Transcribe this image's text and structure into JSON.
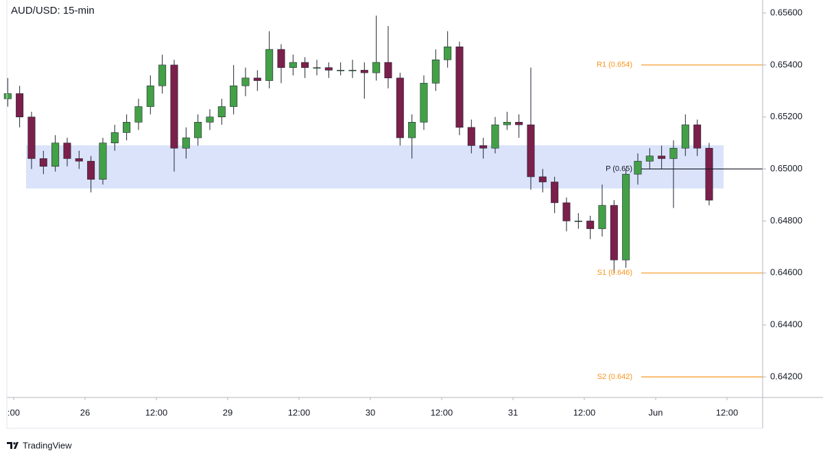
{
  "chart_data": {
    "type": "candlestick",
    "title": "AUD/USD: 15-min",
    "watermark": "TradingView",
    "x": [
      -1,
      1,
      3,
      5,
      7,
      9,
      11,
      13,
      15,
      17,
      19,
      21,
      23,
      25,
      27,
      29,
      31,
      33,
      35,
      37,
      39,
      41,
      43,
      45,
      47,
      49,
      51,
      53,
      55,
      57,
      59,
      61,
      63,
      65,
      67,
      69,
      71,
      73,
      75,
      77,
      79,
      81,
      83,
      85,
      87,
      89,
      91,
      93,
      95,
      97,
      99,
      101,
      103,
      105,
      107,
      109,
      111,
      113,
      115,
      117
    ],
    "open": [
      0.6527,
      0.6529,
      0.652,
      0.6504,
      0.6501,
      0.651,
      0.6504,
      0.6503,
      0.6496,
      0.651,
      0.6514,
      0.6518,
      0.6524,
      0.6532,
      0.654,
      0.6508,
      0.6512,
      0.6518,
      0.652,
      0.6524,
      0.6532,
      0.6535,
      0.6534,
      0.6546,
      0.6539,
      0.6541,
      0.6539,
      0.6539,
      0.6538,
      0.6538,
      0.6538,
      0.6537,
      0.6541,
      0.6535,
      0.6512,
      0.6518,
      0.6533,
      0.6542,
      0.6547,
      0.6516,
      0.6509,
      0.6508,
      0.6517,
      0.6518,
      0.6517,
      0.6497,
      0.6495,
      0.6487,
      0.648,
      0.648,
      0.6477,
      0.6486,
      0.6465,
      0.6498,
      0.6503,
      0.6505,
      0.6504,
      0.6508,
      0.6517,
      0.6508
    ],
    "high": [
      0.6535,
      0.6532,
      0.6522,
      0.6507,
      0.6513,
      0.6512,
      0.6507,
      0.6505,
      0.6512,
      0.6517,
      0.6521,
      0.6527,
      0.6536,
      0.6544,
      0.6542,
      0.6516,
      0.6521,
      0.6523,
      0.6527,
      0.654,
      0.6539,
      0.6538,
      0.6553,
      0.6548,
      0.6544,
      0.6543,
      0.6542,
      0.6541,
      0.6541,
      0.6542,
      0.6541,
      0.6559,
      0.6555,
      0.6537,
      0.6521,
      0.6536,
      0.6546,
      0.6553,
      0.6549,
      0.6519,
      0.6512,
      0.652,
      0.6522,
      0.6521,
      0.6539,
      0.65,
      0.6497,
      0.6489,
      0.6483,
      0.6482,
      0.6494,
      0.6488,
      0.65,
      0.6506,
      0.6508,
      0.6509,
      0.6511,
      0.6521,
      0.6519,
      0.651
    ],
    "low": [
      0.6524,
      0.6516,
      0.65,
      0.6498,
      0.6499,
      0.6501,
      0.65,
      0.6491,
      0.6494,
      0.6507,
      0.6511,
      0.6515,
      0.6521,
      0.6529,
      0.6499,
      0.6504,
      0.6509,
      0.6515,
      0.6517,
      0.6521,
      0.6528,
      0.653,
      0.6531,
      0.6533,
      0.6536,
      0.6535,
      0.6536,
      0.6535,
      0.6536,
      0.6535,
      0.6527,
      0.6534,
      0.6531,
      0.6509,
      0.6504,
      0.6515,
      0.653,
      0.6539,
      0.6513,
      0.6506,
      0.6504,
      0.6506,
      0.6515,
      0.6512,
      0.6492,
      0.6491,
      0.6483,
      0.6476,
      0.6477,
      0.6473,
      0.6474,
      0.646,
      0.6462,
      0.6494,
      0.65,
      0.65,
      0.6485,
      0.6505,
      0.6505,
      0.6486
    ],
    "close": [
      0.6529,
      0.652,
      0.6504,
      0.6501,
      0.651,
      0.6504,
      0.6503,
      0.6496,
      0.651,
      0.6514,
      0.6518,
      0.6524,
      0.6532,
      0.654,
      0.6508,
      0.6512,
      0.6518,
      0.652,
      0.6524,
      0.6532,
      0.6535,
      0.6534,
      0.6546,
      0.6539,
      0.6541,
      0.6539,
      0.6539,
      0.6538,
      0.6538,
      0.6538,
      0.6537,
      0.6541,
      0.6535,
      0.6512,
      0.6518,
      0.6533,
      0.6542,
      0.6547,
      0.6516,
      0.6509,
      0.6508,
      0.6517,
      0.6518,
      0.6517,
      0.6497,
      0.6495,
      0.6487,
      0.648,
      0.648,
      0.6477,
      0.6486,
      0.6465,
      0.6498,
      0.6503,
      0.6505,
      0.6504,
      0.6508,
      0.6517,
      0.6508,
      0.6488
    ],
    "up_color": "#43a047",
    "down_color": "#7b1f4b",
    "wick_color": "#1e222d",
    "xlim": [
      -1.15,
      126
    ],
    "xticks": [
      {
        "value": 0,
        "label": ":00"
      },
      {
        "value": 12,
        "label": "26"
      },
      {
        "value": 24,
        "label": "12:00"
      },
      {
        "value": 36,
        "label": "29"
      },
      {
        "value": 48,
        "label": "12:00"
      },
      {
        "value": 60,
        "label": "30"
      },
      {
        "value": 72,
        "label": "12:00"
      },
      {
        "value": 84,
        "label": "31"
      },
      {
        "value": 96,
        "label": "12:00"
      },
      {
        "value": 108,
        "label": "Jun"
      },
      {
        "value": 120,
        "label": "12:00"
      }
    ],
    "ylim": [
      0.64121,
      0.6565
    ],
    "yticks": [
      {
        "value": 0.642,
        "label": "0.64200"
      },
      {
        "value": 0.644,
        "label": "0.64400"
      },
      {
        "value": 0.646,
        "label": "0.64600"
      },
      {
        "value": 0.648,
        "label": "0.64800"
      },
      {
        "value": 0.65,
        "label": "0.65000"
      },
      {
        "value": 0.652,
        "label": "0.65200"
      },
      {
        "value": 0.654,
        "label": "0.65400"
      },
      {
        "value": 0.656,
        "label": "0.65600"
      }
    ],
    "zone": {
      "low": 0.64925,
      "high": 0.65091,
      "color": "#dbe3fb"
    },
    "levels": [
      {
        "label": "R1 (0.654)",
        "value": 0.654,
        "color": "#f7931a"
      },
      {
        "label": "P (0.65)",
        "value": 0.65,
        "color": "#131722"
      },
      {
        "label": "S1 (0.646)",
        "value": 0.646,
        "color": "#f7931a"
      },
      {
        "label": "S2 (0.642)",
        "value": 0.642,
        "color": "#f7931a"
      }
    ]
  }
}
